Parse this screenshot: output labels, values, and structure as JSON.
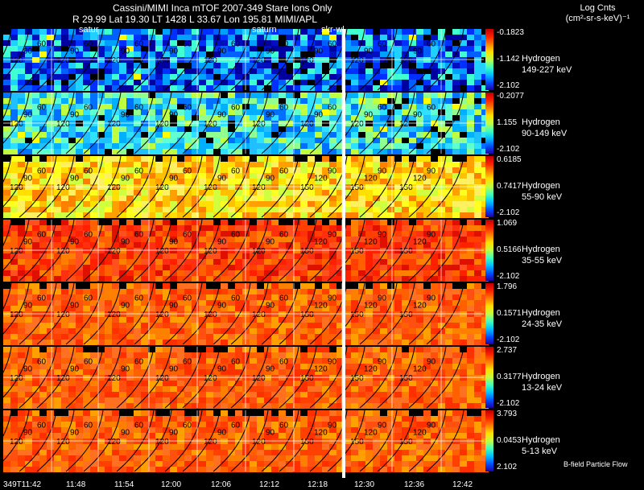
{
  "header": {
    "title": "Cassini/MIMI Inca mTOF  2007-349   Stare    Ions Only",
    "info": "R       29.99 Lat 19.30 LT 1428 L      33.67 Lon      195.81  MIMI/APL",
    "overlays": [
      "satur",
      "saturn",
      "skr-wl"
    ]
  },
  "legend": {
    "title_line1": "Log Cnts",
    "title_line2": "(cm²-sr-s-keV)⁻¹",
    "footer": "B-field Particle Flow"
  },
  "panels": [
    {
      "species": "Hydrogen",
      "energy": "149-227 keV",
      "ticks": [
        "-0.1823",
        "-1.142",
        "-2.102"
      ],
      "scheme": "blue"
    },
    {
      "species": "Hydrogen",
      "energy": "90-149 keV",
      "ticks": [
        "-0.2077",
        "1.155",
        "-2.102"
      ],
      "scheme": "cyan"
    },
    {
      "species": "Hydrogen",
      "energy": "55-90 keV",
      "ticks": [
        "0.6185",
        "0.7417",
        "-2.102"
      ],
      "scheme": "yellow"
    },
    {
      "species": "Hydrogen",
      "energy": "35-55 keV",
      "ticks": [
        "1.069",
        "0.5166",
        "-2.102"
      ],
      "scheme": "red"
    },
    {
      "species": "Hydrogen",
      "energy": "24-35 keV",
      "ticks": [
        "1.796",
        "0.1571",
        "-2.102"
      ],
      "scheme": "orange"
    },
    {
      "species": "Hydrogen",
      "energy": "13-24 keV",
      "ticks": [
        "2.737",
        "0.3177",
        "-2.102"
      ],
      "scheme": "orange"
    },
    {
      "species": "Hydrogen",
      "energy": "5-13 keV",
      "ticks": [
        "3.793",
        "0.0453",
        "2.102"
      ],
      "scheme": "orange"
    }
  ],
  "contour_labels": [
    "120",
    "90",
    "60",
    "150"
  ],
  "time_axis": [
    "349T11:42",
    "11:48",
    "11:54",
    "12:00",
    "12:06",
    "12:12",
    "12:18",
    "12:30",
    "12:36",
    "12:42"
  ]
}
